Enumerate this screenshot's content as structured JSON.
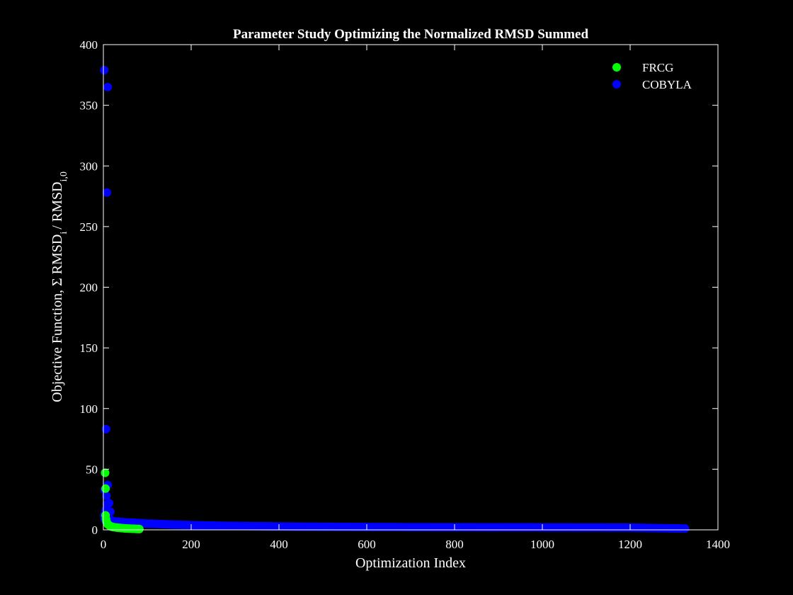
{
  "colors": {
    "background": "#000000",
    "axes": "#ffffff",
    "text": "#ffffff",
    "frcg": "#00ff00",
    "cobyla": "#0000ff"
  },
  "chart_data": {
    "type": "scatter",
    "title": "Parameter Study Optimizing the Normalized RMSD Summed",
    "xlabel": "Optimization Index",
    "ylabel": {
      "main": "Objective Function, Σ RMSD",
      "sub1": "i",
      "mid": "/ RMSD",
      "sub2": "i,0"
    },
    "xlim": [
      0,
      1400
    ],
    "ylim": [
      0,
      400
    ],
    "xticks": [
      "0",
      "200",
      "400",
      "600",
      "800",
      "1000",
      "1200",
      "1400"
    ],
    "yticks": [
      "0",
      "50",
      "100",
      "150",
      "200",
      "250",
      "300",
      "350",
      "400"
    ],
    "xtick_values": [
      0,
      200,
      400,
      600,
      800,
      1000,
      1200,
      1400
    ],
    "ytick_values": [
      0,
      50,
      100,
      150,
      200,
      250,
      300,
      350,
      400
    ],
    "grid": false,
    "legend_position": "top-right",
    "series": [
      {
        "name": "FRCG",
        "color": "#00ff00",
        "points": [
          [
            4,
            47
          ],
          [
            5,
            34
          ],
          [
            5,
            12
          ],
          [
            6,
            9
          ],
          [
            7,
            7
          ],
          [
            8,
            6
          ],
          [
            9,
            5
          ],
          [
            10,
            4.5
          ],
          [
            12,
            4
          ],
          [
            14,
            3.5
          ],
          [
            16,
            3
          ],
          [
            18,
            2.8
          ],
          [
            20,
            2.5
          ],
          [
            22,
            2.3
          ],
          [
            25,
            2.1
          ],
          [
            28,
            2
          ],
          [
            31,
            1.8
          ],
          [
            34,
            1.7
          ],
          [
            37,
            1.6
          ],
          [
            40,
            1.5
          ],
          [
            43,
            1.4
          ],
          [
            46,
            1.3
          ],
          [
            49,
            1.2
          ],
          [
            52,
            1.15
          ],
          [
            55,
            1.1
          ],
          [
            58,
            1.05
          ],
          [
            61,
            1
          ],
          [
            64,
            0.95
          ],
          [
            67,
            0.9
          ],
          [
            70,
            0.85
          ],
          [
            73,
            0.8
          ],
          [
            76,
            0.75
          ],
          [
            79,
            0.7
          ],
          [
            82,
            0.65
          ]
        ]
      },
      {
        "name": "COBYLA",
        "color": "#0000ff",
        "points": [
          [
            2,
            379
          ],
          [
            2,
            12
          ],
          [
            3,
            33
          ],
          [
            3,
            9
          ],
          [
            4,
            8
          ],
          [
            5,
            16
          ],
          [
            6,
            83
          ],
          [
            6,
            11
          ],
          [
            7,
            28
          ],
          [
            7,
            6
          ],
          [
            8,
            21
          ],
          [
            8,
            278
          ],
          [
            9,
            7
          ],
          [
            10,
            365
          ],
          [
            10,
            37
          ],
          [
            11,
            10
          ],
          [
            12,
            14
          ],
          [
            13,
            22
          ],
          [
            14,
            9
          ],
          [
            15,
            8
          ],
          [
            16,
            15
          ],
          [
            18,
            8
          ],
          [
            20,
            7.5
          ],
          [
            25,
            7
          ],
          [
            30,
            6.8
          ],
          [
            40,
            6.5
          ],
          [
            50,
            6.2
          ],
          [
            60,
            6
          ],
          [
            80,
            5.6
          ],
          [
            100,
            5.2
          ],
          [
            120,
            4.9
          ],
          [
            140,
            4.6
          ],
          [
            160,
            4.3
          ],
          [
            180,
            4.1
          ],
          [
            200,
            3.9
          ],
          [
            250,
            3.5
          ],
          [
            300,
            3.2
          ],
          [
            350,
            3
          ],
          [
            400,
            2.8
          ],
          [
            450,
            2.6
          ],
          [
            500,
            2.5
          ],
          [
            600,
            2.3
          ],
          [
            700,
            2.2
          ],
          [
            800,
            2.1
          ],
          [
            900,
            2.05
          ],
          [
            1000,
            2
          ],
          [
            1100,
            1.9
          ],
          [
            1200,
            1.8
          ],
          [
            1250,
            1.5
          ],
          [
            1300,
            1.2
          ],
          [
            1320,
            1.1
          ],
          [
            1325,
            1
          ]
        ]
      }
    ]
  }
}
